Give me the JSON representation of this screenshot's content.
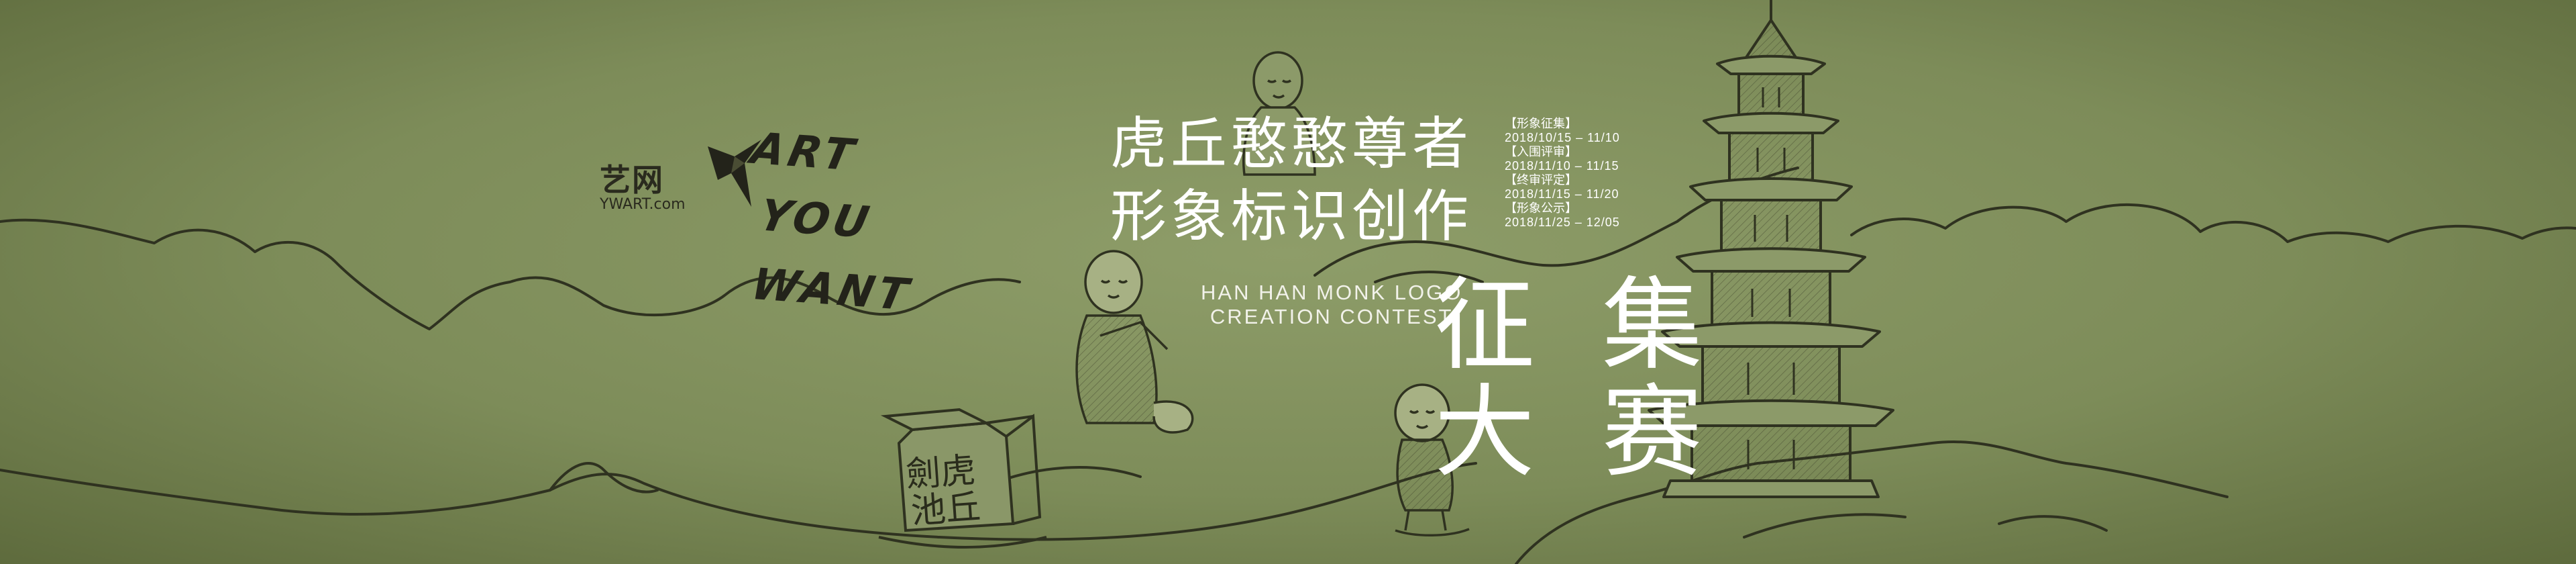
{
  "logo": {
    "name_cn": "艺网",
    "name_en": "YWART.com",
    "slogan_lines": [
      "ART",
      "YOU",
      "WANT"
    ]
  },
  "title": {
    "line1": "虎丘憨憨尊者",
    "line2": "形象标识创作"
  },
  "subtitle_en": {
    "line1": "HAN HAN MONK LOGO",
    "line2": "CREATION CONTEST"
  },
  "big_title": {
    "line1": "征 集",
    "line2": "大 赛"
  },
  "stone_inscription": {
    "line1": "劍虎",
    "line2": "池丘"
  },
  "schedule": [
    {
      "name": "【形象征集】",
      "dates": "2018/10/15 – 11/10"
    },
    {
      "name": "【入围评审】",
      "dates": "2018/11/10 – 11/15"
    },
    {
      "name": "【终审评定】",
      "dates": "2018/11/15 – 11/20"
    },
    {
      "name": "【形象公示】",
      "dates": "2018/11/25 – 12/05"
    }
  ],
  "colors": {
    "background": "#7f8e5b",
    "line_art": "#2f3220",
    "title_text": "#ffffff"
  },
  "icons": [
    "origami-bird-icon"
  ]
}
